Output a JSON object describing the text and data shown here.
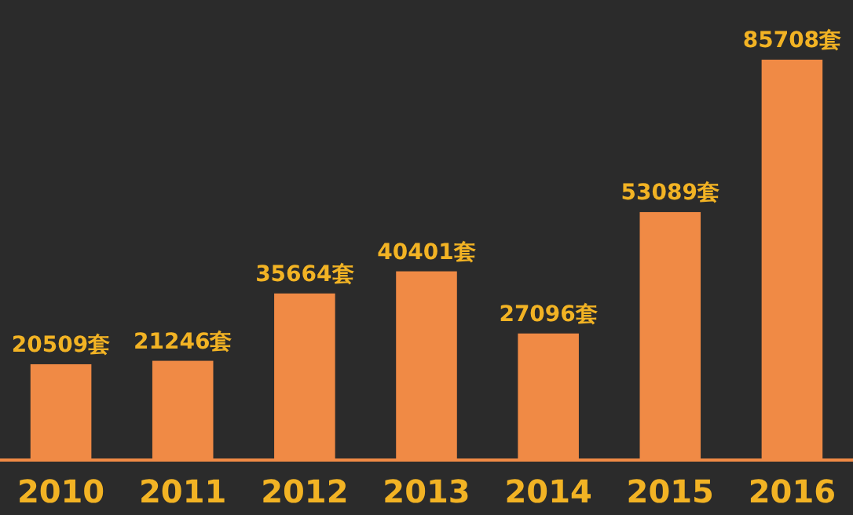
{
  "chart_data": {
    "type": "bar",
    "categories": [
      "2010",
      "2011",
      "2012",
      "2013",
      "2014",
      "2015",
      "2016"
    ],
    "values": [
      20509,
      21246,
      35664,
      40401,
      27096,
      53089,
      85708
    ],
    "value_labels": [
      "20509套",
      "21246套",
      "35664套",
      "40401套",
      "27096套",
      "53089套",
      "85708套"
    ],
    "color": "#f08a45"
  }
}
